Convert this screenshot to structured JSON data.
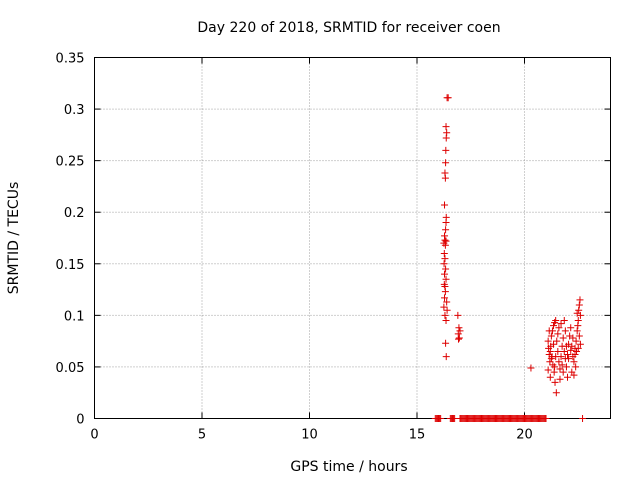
{
  "chart_data": {
    "type": "scatter",
    "title": "Day 220 of 2018, SRMTID for receiver coen",
    "xlabel": "GPS time / hours",
    "ylabel": "SRMTID / TECUs",
    "xlim": [
      0,
      24
    ],
    "ylim": [
      0,
      0.35
    ],
    "xticks": [
      0,
      5,
      10,
      15,
      20
    ],
    "xtick_labels": [
      "0",
      "5",
      "10",
      "15",
      "20"
    ],
    "yticks": [
      0,
      0.05,
      0.1,
      0.15,
      0.2,
      0.25,
      0.3,
      0.35
    ],
    "ytick_labels": [
      "0",
      "0.05",
      "0.1",
      "0.15",
      "0.2",
      "0.25",
      "0.3",
      "0.35"
    ],
    "grid": true,
    "marker": "+",
    "marker_color": "#dd0000",
    "series": [
      {
        "name": "SRMTID",
        "points": [
          [
            15.85,
            0
          ],
          [
            15.9,
            0
          ],
          [
            15.95,
            0
          ],
          [
            16.0,
            0
          ],
          [
            16.05,
            0
          ],
          [
            16.1,
            0
          ],
          [
            16.55,
            0
          ],
          [
            16.6,
            0
          ],
          [
            16.65,
            0
          ],
          [
            16.7,
            0
          ],
          [
            16.75,
            0
          ],
          [
            17.0,
            0
          ],
          [
            17.05,
            0
          ],
          [
            17.1,
            0
          ],
          [
            17.15,
            0
          ],
          [
            17.2,
            0
          ],
          [
            17.25,
            0
          ],
          [
            17.3,
            0
          ],
          [
            17.35,
            0
          ],
          [
            17.4,
            0
          ],
          [
            17.45,
            0
          ],
          [
            17.5,
            0
          ],
          [
            17.55,
            0
          ],
          [
            17.6,
            0
          ],
          [
            17.65,
            0
          ],
          [
            17.7,
            0
          ],
          [
            17.75,
            0
          ],
          [
            17.8,
            0
          ],
          [
            17.85,
            0
          ],
          [
            17.9,
            0
          ],
          [
            17.95,
            0
          ],
          [
            18.0,
            0
          ],
          [
            18.05,
            0
          ],
          [
            18.1,
            0
          ],
          [
            18.15,
            0
          ],
          [
            18.2,
            0
          ],
          [
            18.25,
            0
          ],
          [
            18.3,
            0
          ],
          [
            18.35,
            0
          ],
          [
            18.4,
            0
          ],
          [
            18.45,
            0
          ],
          [
            18.5,
            0
          ],
          [
            18.55,
            0
          ],
          [
            18.6,
            0
          ],
          [
            18.65,
            0
          ],
          [
            18.7,
            0
          ],
          [
            18.75,
            0
          ],
          [
            18.8,
            0
          ],
          [
            18.85,
            0
          ],
          [
            18.9,
            0
          ],
          [
            18.95,
            0
          ],
          [
            19.0,
            0
          ],
          [
            19.05,
            0
          ],
          [
            19.1,
            0
          ],
          [
            19.15,
            0
          ],
          [
            19.2,
            0
          ],
          [
            19.25,
            0
          ],
          [
            19.3,
            0
          ],
          [
            19.35,
            0
          ],
          [
            19.4,
            0
          ],
          [
            19.45,
            0
          ],
          [
            19.5,
            0
          ],
          [
            19.55,
            0
          ],
          [
            19.6,
            0
          ],
          [
            19.65,
            0
          ],
          [
            19.7,
            0
          ],
          [
            19.75,
            0
          ],
          [
            19.8,
            0
          ],
          [
            19.85,
            0
          ],
          [
            19.9,
            0
          ],
          [
            19.95,
            0
          ],
          [
            20.0,
            0
          ],
          [
            20.05,
            0
          ],
          [
            20.1,
            0
          ],
          [
            20.15,
            0
          ],
          [
            20.2,
            0
          ],
          [
            20.25,
            0
          ],
          [
            20.3,
            0
          ],
          [
            20.35,
            0
          ],
          [
            20.4,
            0
          ],
          [
            20.45,
            0
          ],
          [
            20.5,
            0
          ],
          [
            20.55,
            0
          ],
          [
            20.6,
            0
          ],
          [
            20.65,
            0
          ],
          [
            20.7,
            0
          ],
          [
            20.75,
            0
          ],
          [
            20.8,
            0
          ],
          [
            20.85,
            0
          ],
          [
            20.9,
            0
          ],
          [
            20.95,
            0
          ],
          [
            21.0,
            0
          ],
          [
            22.7,
            0
          ],
          [
            16.4,
            0.311
          ],
          [
            16.45,
            0.311
          ],
          [
            16.35,
            0.283
          ],
          [
            16.38,
            0.277
          ],
          [
            16.36,
            0.272
          ],
          [
            16.34,
            0.26
          ],
          [
            16.33,
            0.248
          ],
          [
            16.3,
            0.238
          ],
          [
            16.32,
            0.233
          ],
          [
            16.28,
            0.207
          ],
          [
            16.36,
            0.195
          ],
          [
            16.35,
            0.19
          ],
          [
            16.33,
            0.183
          ],
          [
            16.28,
            0.177
          ],
          [
            16.3,
            0.173
          ],
          [
            16.35,
            0.172
          ],
          [
            16.25,
            0.17
          ],
          [
            16.32,
            0.168
          ],
          [
            16.27,
            0.16
          ],
          [
            16.3,
            0.155
          ],
          [
            16.26,
            0.15
          ],
          [
            16.33,
            0.145
          ],
          [
            16.28,
            0.14
          ],
          [
            16.35,
            0.135
          ],
          [
            16.27,
            0.13
          ],
          [
            16.3,
            0.128
          ],
          [
            16.32,
            0.123
          ],
          [
            16.28,
            0.117
          ],
          [
            16.38,
            0.113
          ],
          [
            16.25,
            0.108
          ],
          [
            16.4,
            0.105
          ],
          [
            16.3,
            0.1
          ],
          [
            16.35,
            0.095
          ],
          [
            16.33,
            0.073
          ],
          [
            16.36,
            0.06
          ],
          [
            16.9,
            0.1
          ],
          [
            16.95,
            0.088
          ],
          [
            17.0,
            0.085
          ],
          [
            16.92,
            0.082
          ],
          [
            16.97,
            0.078
          ],
          [
            16.93,
            0.077
          ],
          [
            20.3,
            0.049
          ],
          [
            21.1,
            0.075
          ],
          [
            21.12,
            0.068
          ],
          [
            21.15,
            0.062
          ],
          [
            21.18,
            0.055
          ],
          [
            21.1,
            0.047
          ],
          [
            21.2,
            0.04
          ],
          [
            21.22,
            0.07
          ],
          [
            21.25,
            0.08
          ],
          [
            21.3,
            0.085
          ],
          [
            21.35,
            0.09
          ],
          [
            21.4,
            0.093
          ],
          [
            21.45,
            0.095
          ],
          [
            21.28,
            0.06
          ],
          [
            21.32,
            0.052
          ],
          [
            21.38,
            0.045
          ],
          [
            21.42,
            0.035
          ],
          [
            21.48,
            0.025
          ],
          [
            21.5,
            0.075
          ],
          [
            21.55,
            0.065
          ],
          [
            21.6,
            0.055
          ],
          [
            21.65,
            0.048
          ],
          [
            21.7,
            0.06
          ],
          [
            21.75,
            0.07
          ],
          [
            21.8,
            0.078
          ],
          [
            21.85,
            0.065
          ],
          [
            21.9,
            0.058
          ],
          [
            21.95,
            0.05
          ],
          [
            22.0,
            0.062
          ],
          [
            22.05,
            0.072
          ],
          [
            22.1,
            0.08
          ],
          [
            22.15,
            0.088
          ],
          [
            22.2,
            0.07
          ],
          [
            22.25,
            0.06
          ],
          [
            22.3,
            0.055
          ],
          [
            22.35,
            0.068
          ],
          [
            22.4,
            0.075
          ],
          [
            22.45,
            0.085
          ],
          [
            22.5,
            0.095
          ],
          [
            22.52,
            0.105
          ],
          [
            22.55,
            0.11
          ],
          [
            22.58,
            0.115
          ],
          [
            22.6,
            0.1
          ],
          [
            22.48,
            0.09
          ],
          [
            22.42,
            0.065
          ],
          [
            22.38,
            0.05
          ],
          [
            22.55,
            0.08
          ],
          [
            22.6,
            0.072
          ],
          [
            21.6,
            0.088
          ],
          [
            21.7,
            0.092
          ],
          [
            21.9,
            0.085
          ],
          [
            22.0,
            0.04
          ],
          [
            21.8,
            0.045
          ],
          [
            21.65,
            0.038
          ],
          [
            22.2,
            0.045
          ],
          [
            22.3,
            0.042
          ],
          [
            21.45,
            0.06
          ],
          [
            21.55,
            0.082
          ],
          [
            21.75,
            0.052
          ],
          [
            21.95,
            0.07
          ],
          [
            22.05,
            0.058
          ],
          [
            22.15,
            0.066
          ],
          [
            22.25,
            0.078
          ],
          [
            22.35,
            0.062
          ],
          [
            22.45,
            0.102
          ],
          [
            22.5,
            0.068
          ],
          [
            21.2,
            0.065
          ],
          [
            21.25,
            0.058
          ],
          [
            21.15,
            0.085
          ],
          [
            21.35,
            0.072
          ],
          [
            21.4,
            0.05
          ],
          [
            21.85,
            0.095
          ]
        ]
      }
    ]
  }
}
